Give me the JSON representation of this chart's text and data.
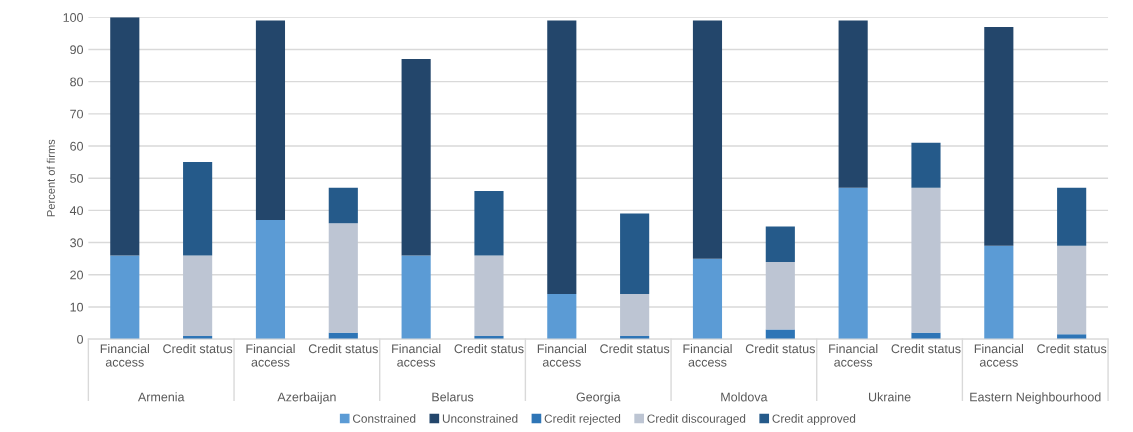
{
  "chart_data": {
    "type": "bar",
    "stacked": true,
    "ylabel": "Percent of firms",
    "categories": [
      "Financial access",
      "Credit status",
      "Financial access",
      "Credit status",
      "Financial access",
      "Credit status",
      "Financial access",
      "Credit status",
      "Financial access",
      "Credit status",
      "Financial access",
      "Credit status",
      "Financial access",
      "Credit status"
    ],
    "annotations": [
      "Armenia",
      "Azerbaijan",
      "Belarus",
      "Georgia",
      "Moldova",
      "Ukraine",
      "Eastern Neighbourhood"
    ],
    "series": [
      {
        "name": "Constrained",
        "color": "#5b9bd5",
        "values": [
          26,
          null,
          37,
          null,
          26,
          null,
          14,
          null,
          25,
          null,
          47,
          null,
          29,
          null
        ]
      },
      {
        "name": "Unconstrained",
        "color": "#23466b",
        "values": [
          74,
          null,
          62,
          null,
          61,
          null,
          85,
          null,
          74,
          null,
          52,
          null,
          68,
          null
        ]
      },
      {
        "name": "Credit rejected",
        "color": "#2e75b6",
        "values": [
          null,
          1,
          null,
          2,
          null,
          1,
          null,
          1,
          null,
          3,
          null,
          2,
          null,
          1.5
        ]
      },
      {
        "name": "Credit discouraged",
        "color": "#bdc5d3",
        "values": [
          null,
          25,
          null,
          34,
          null,
          25,
          null,
          13,
          null,
          21,
          null,
          45,
          null,
          27.5
        ]
      },
      {
        "name": "Credit approved",
        "color": "#255a8a",
        "values": [
          null,
          29,
          null,
          11,
          null,
          20,
          null,
          25,
          null,
          11,
          null,
          14,
          null,
          18
        ]
      }
    ],
    "ylim": [
      0,
      100
    ],
    "yticks": [
      0,
      10,
      20,
      30,
      40,
      50,
      60,
      70,
      80,
      90,
      100
    ],
    "grid": "y",
    "legend": "bottom"
  }
}
